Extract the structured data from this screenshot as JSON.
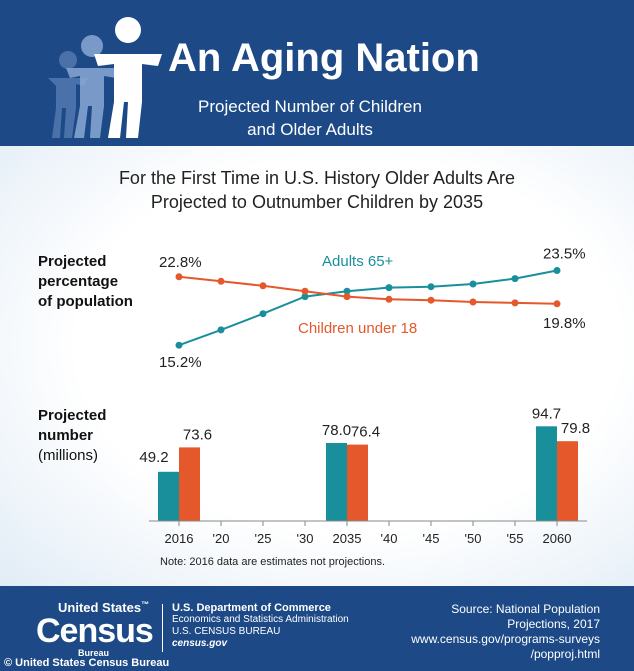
{
  "header": {
    "title": "An Aging Nation",
    "subtitle_line1": "Projected Number of Children",
    "subtitle_line2": "and Older Adults",
    "icon": "people-figures-icon"
  },
  "headline": {
    "line1": "For the First Time in U.S. History Older Adults Are",
    "line2": "Projected to Outnumber Children by 2035"
  },
  "labels": {
    "percent_line1": "Projected",
    "percent_line2": "percentage",
    "percent_line3": "of population",
    "number_line1": "Projected",
    "number_line2": "number",
    "number_line3": "(millions)"
  },
  "note": "Note: 2016 data are estimates not projections.",
  "colors": {
    "header_bg": "#1d4a87",
    "adults": "#1a8f9c",
    "children": "#e4582b"
  },
  "chart_data": [
    {
      "type": "line",
      "x": [
        2016,
        2020,
        2025,
        2030,
        2035,
        2040,
        2045,
        2050,
        2055,
        2060
      ],
      "series": [
        {
          "name": "Adults 65+",
          "color": "#1a8f9c",
          "values": [
            15.2,
            16.9,
            18.7,
            20.6,
            21.2,
            21.6,
            21.7,
            22.0,
            22.6,
            23.5
          ]
        },
        {
          "name": "Children under 18",
          "color": "#e4582b",
          "values": [
            22.8,
            22.3,
            21.8,
            21.2,
            20.6,
            20.3,
            20.2,
            20.0,
            19.9,
            19.8
          ]
        }
      ],
      "point_labels": {
        "adults_start": "15.2%",
        "adults_end": "23.5%",
        "children_start": "22.8%",
        "children_end": "19.8%"
      },
      "ylabel": "Projected percentage of population",
      "ylim": [
        14,
        24
      ]
    },
    {
      "type": "bar",
      "categories": [
        "2016",
        "'20",
        "'25",
        "'30",
        "2035",
        "'40",
        "'45",
        "'50",
        "'55",
        "2060"
      ],
      "series": [
        {
          "name": "Adults 65+",
          "color": "#1a8f9c",
          "values": [
            49.2,
            null,
            null,
            null,
            78.0,
            null,
            null,
            null,
            null,
            94.7
          ]
        },
        {
          "name": "Children under 18",
          "color": "#e4582b",
          "values": [
            73.6,
            null,
            null,
            null,
            76.4,
            null,
            null,
            null,
            null,
            79.8
          ]
        }
      ],
      "value_labels": {
        "2016": [
          "49.2",
          "73.6"
        ],
        "2035": [
          "78.0",
          "76.4"
        ],
        "2060": [
          "94.7",
          "79.8"
        ]
      },
      "ylabel": "Projected number (millions)",
      "ylim": [
        0,
        100
      ]
    }
  ],
  "footer": {
    "logo_line1": "United States",
    "logo_tm": "™",
    "logo_line2": "Census",
    "logo_line3": "Bureau",
    "dept_line1": "U.S. Department of Commerce",
    "dept_line2": "Economics and Statistics Administration",
    "dept_line3": "U.S. CENSUS BUREAU",
    "dept_line4": "census.gov",
    "source_line1": "Source: National Population",
    "source_line2": "Projections, 2017",
    "source_line3": "www.census.gov/programs-surveys",
    "source_line4": "/popproj.html"
  },
  "credit": "© United States Census Bureau"
}
